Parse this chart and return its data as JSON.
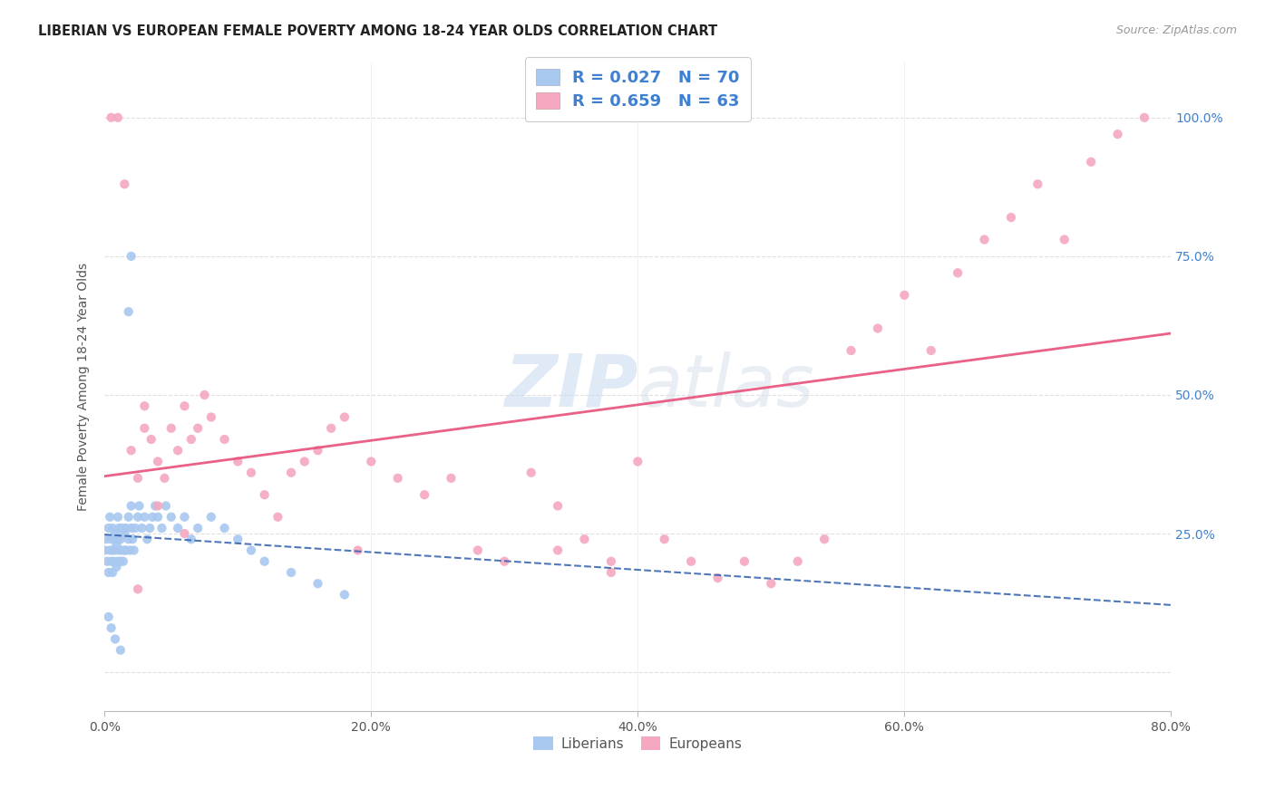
{
  "title": "LIBERIAN VS EUROPEAN FEMALE POVERTY AMONG 18-24 YEAR OLDS CORRELATION CHART",
  "source": "Source: ZipAtlas.com",
  "ylabel": "Female Poverty Among 18-24 Year Olds",
  "xlim": [
    0.0,
    0.8
  ],
  "ylim_low": -0.07,
  "ylim_high": 1.1,
  "liberian_R": 0.027,
  "liberian_N": 70,
  "european_R": 0.659,
  "european_N": 63,
  "liberian_color": "#a8c8f0",
  "european_color": "#f5a8c0",
  "liberian_line_color": "#3060b0",
  "european_line_color": "#e8507a",
  "background_color": "#ffffff",
  "grid_color": "#dddddd",
  "right_axis_color": "#4080d0",
  "text_color": "#555555",
  "title_color": "#222222",
  "source_color": "#999999",
  "watermark_color": "#c8d8f0",
  "lib_x": [
    0.0,
    0.001,
    0.002,
    0.003,
    0.003,
    0.004,
    0.004,
    0.005,
    0.005,
    0.006,
    0.006,
    0.006,
    0.007,
    0.007,
    0.008,
    0.008,
    0.009,
    0.009,
    0.01,
    0.01,
    0.01,
    0.011,
    0.011,
    0.012,
    0.012,
    0.013,
    0.013,
    0.014,
    0.015,
    0.015,
    0.016,
    0.016,
    0.018,
    0.018,
    0.019,
    0.02,
    0.02,
    0.021,
    0.022,
    0.023,
    0.025,
    0.026,
    0.028,
    0.03,
    0.032,
    0.034,
    0.036,
    0.038,
    0.04,
    0.043,
    0.046,
    0.05,
    0.055,
    0.06,
    0.065,
    0.07,
    0.08,
    0.09,
    0.1,
    0.11,
    0.12,
    0.14,
    0.16,
    0.18,
    0.02,
    0.018,
    0.003,
    0.005,
    0.008,
    0.012
  ],
  "lib_y": [
    0.22,
    0.24,
    0.2,
    0.18,
    0.26,
    0.22,
    0.28,
    0.2,
    0.24,
    0.18,
    0.22,
    0.26,
    0.2,
    0.24,
    0.22,
    0.25,
    0.19,
    0.23,
    0.2,
    0.24,
    0.28,
    0.22,
    0.26,
    0.2,
    0.24,
    0.22,
    0.26,
    0.2,
    0.22,
    0.25,
    0.22,
    0.26,
    0.24,
    0.28,
    0.22,
    0.26,
    0.3,
    0.24,
    0.22,
    0.26,
    0.28,
    0.3,
    0.26,
    0.28,
    0.24,
    0.26,
    0.28,
    0.3,
    0.28,
    0.26,
    0.3,
    0.28,
    0.26,
    0.28,
    0.24,
    0.26,
    0.28,
    0.26,
    0.24,
    0.22,
    0.2,
    0.18,
    0.16,
    0.14,
    0.75,
    0.65,
    0.1,
    0.08,
    0.06,
    0.04
  ],
  "eur_x": [
    0.005,
    0.01,
    0.015,
    0.02,
    0.025,
    0.03,
    0.03,
    0.035,
    0.04,
    0.045,
    0.05,
    0.055,
    0.06,
    0.065,
    0.07,
    0.075,
    0.08,
    0.09,
    0.1,
    0.11,
    0.12,
    0.13,
    0.14,
    0.15,
    0.16,
    0.17,
    0.18,
    0.19,
    0.2,
    0.22,
    0.24,
    0.26,
    0.28,
    0.3,
    0.32,
    0.34,
    0.36,
    0.38,
    0.4,
    0.42,
    0.44,
    0.46,
    0.48,
    0.5,
    0.52,
    0.54,
    0.56,
    0.58,
    0.6,
    0.62,
    0.64,
    0.66,
    0.68,
    0.7,
    0.72,
    0.74,
    0.76,
    0.78,
    0.025,
    0.04,
    0.06,
    0.34,
    0.38
  ],
  "eur_y": [
    1.0,
    1.0,
    0.88,
    0.4,
    0.35,
    0.44,
    0.48,
    0.42,
    0.38,
    0.35,
    0.44,
    0.4,
    0.48,
    0.42,
    0.44,
    0.5,
    0.46,
    0.42,
    0.38,
    0.36,
    0.32,
    0.28,
    0.36,
    0.38,
    0.4,
    0.44,
    0.46,
    0.22,
    0.38,
    0.35,
    0.32,
    0.35,
    0.22,
    0.2,
    0.36,
    0.3,
    0.24,
    0.2,
    0.38,
    0.24,
    0.2,
    0.17,
    0.2,
    0.16,
    0.2,
    0.24,
    0.58,
    0.62,
    0.68,
    0.58,
    0.72,
    0.78,
    0.82,
    0.88,
    0.78,
    0.92,
    0.97,
    1.0,
    0.15,
    0.3,
    0.25,
    0.22,
    0.18
  ]
}
